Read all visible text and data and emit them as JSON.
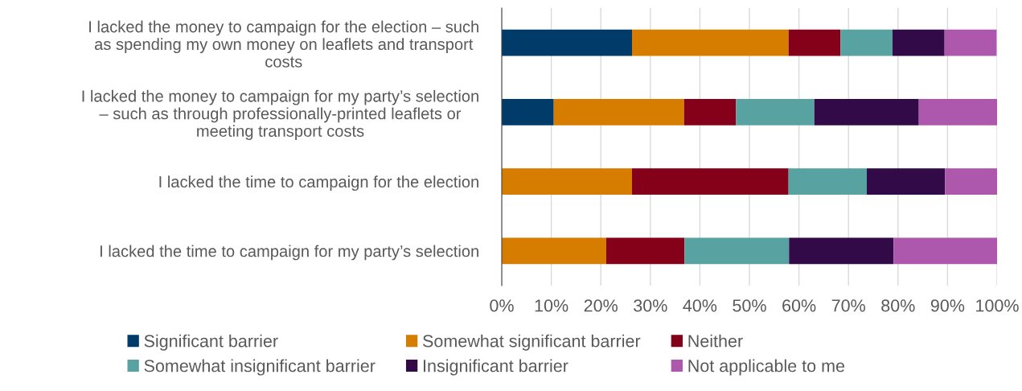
{
  "chart_data": {
    "type": "bar",
    "orientation": "horizontal",
    "stacked": true,
    "categories": [
      "I lacked the money to campaign for the election – such\nas spending my own money on leaflets and transport\ncosts",
      "I lacked the money to campaign for my party’s selection\n– such as through professionally-printed leaflets or\nmeeting transport costs",
      "I lacked the time to campaign for the election",
      "I lacked the time to campaign for my party’s selection"
    ],
    "series": [
      {
        "name": "Significant barrier",
        "color": "#003b69",
        "values": [
          26.3,
          10.5,
          0,
          0
        ]
      },
      {
        "name": "Somewhat significant barrier",
        "color": "#d67d00",
        "values": [
          31.6,
          26.3,
          26.3,
          21.1
        ]
      },
      {
        "name": "Neither",
        "color": "#850019",
        "values": [
          10.5,
          10.5,
          31.6,
          15.8
        ]
      },
      {
        "name": "Somewhat insignificant barrier",
        "color": "#58a2a2",
        "values": [
          10.5,
          15.8,
          15.8,
          21.1
        ]
      },
      {
        "name": "Insignificant barrier",
        "color": "#310a47",
        "values": [
          10.5,
          21.1,
          15.8,
          21.1
        ]
      },
      {
        "name": "Not applicable to me",
        "color": "#ad57ad",
        "values": [
          10.5,
          15.8,
          10.5,
          21.1
        ]
      }
    ],
    "xlim": [
      0,
      100
    ],
    "xticks": [
      {
        "value": 0,
        "label": "0%"
      },
      {
        "value": 10,
        "label": "10%"
      },
      {
        "value": 20,
        "label": "20%"
      },
      {
        "value": 30,
        "label": "30%"
      },
      {
        "value": 40,
        "label": "40%"
      },
      {
        "value": 50,
        "label": "50%"
      },
      {
        "value": 60,
        "label": "60%"
      },
      {
        "value": 70,
        "label": "70%"
      },
      {
        "value": 80,
        "label": "80%"
      },
      {
        "value": 90,
        "label": "90%"
      },
      {
        "value": 100,
        "label": "100%"
      }
    ],
    "grid": "x",
    "legend": "bottom"
  }
}
